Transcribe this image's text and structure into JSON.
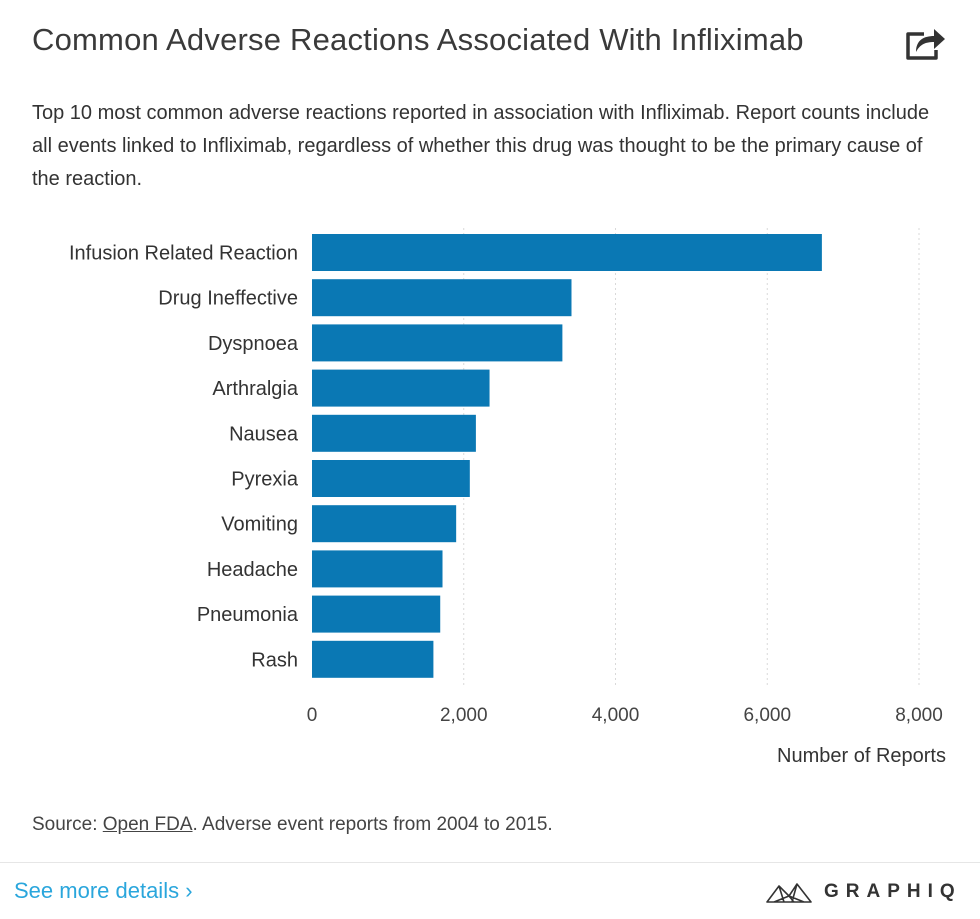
{
  "header": {
    "title": "Common Adverse Reactions Associated With Infliximab",
    "share_icon": "share-icon"
  },
  "description": "Top 10 most common adverse reactions reported in association with Infliximab. Report counts include all events linked to Infliximab, regardless of whether this drug was thought to be the primary cause of the reaction.",
  "chart_data": {
    "type": "bar",
    "orientation": "horizontal",
    "categories": [
      "Infusion Related Reaction",
      "Drug Ineffective",
      "Dyspnoea",
      "Arthralgia",
      "Nausea",
      "Pyrexia",
      "Vomiting",
      "Headache",
      "Pneumonia",
      "Rash"
    ],
    "values": [
      6720,
      3420,
      3300,
      2340,
      2160,
      2080,
      1900,
      1720,
      1690,
      1600
    ],
    "xlabel": "Number of Reports",
    "ylabel": "",
    "xlim": [
      0,
      8000
    ],
    "xticks": [
      0,
      2000,
      4000,
      6000,
      8000
    ],
    "xtick_labels": [
      "0",
      "2,000",
      "4,000",
      "6,000",
      "8,000"
    ],
    "grid": "vertical dotted",
    "bar_color": "#0a78b4"
  },
  "footer": {
    "source_prefix": "Source: ",
    "source_link": "Open FDA",
    "source_suffix": ". Adverse event reports from 2004 to 2015.",
    "details_link": "See more details ›",
    "brand": "GRAPHIQ"
  },
  "colors": {
    "bar": "#0a78b4",
    "link": "#2aa6dc",
    "grid": "#d9d9d9"
  }
}
